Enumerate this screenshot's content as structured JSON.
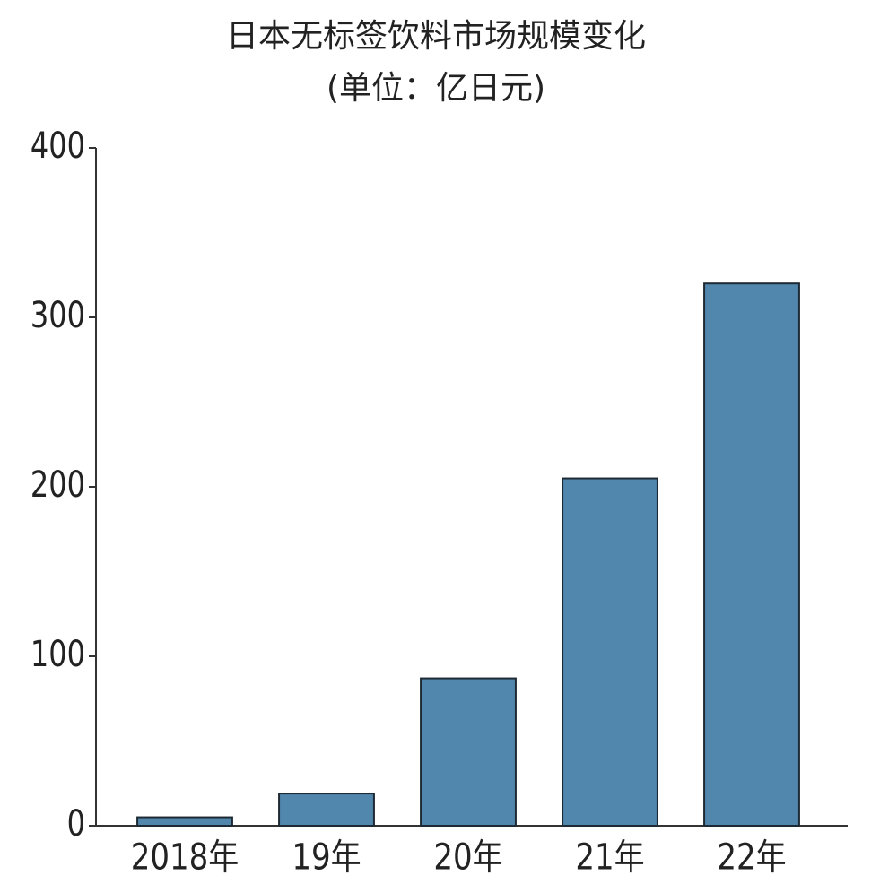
{
  "chart_data": {
    "type": "bar",
    "title": "日本无标签饮料市场规模变化",
    "subtitle": "(单位：亿日元)",
    "categories": [
      "2018年",
      "19年",
      "20年",
      "21年",
      "22年"
    ],
    "values": [
      5,
      19,
      87,
      205,
      320
    ],
    "color": "#5187ad",
    "ylim": [
      0,
      400
    ],
    "yticks": [
      0,
      100,
      200,
      300,
      400
    ],
    "grid": false
  }
}
